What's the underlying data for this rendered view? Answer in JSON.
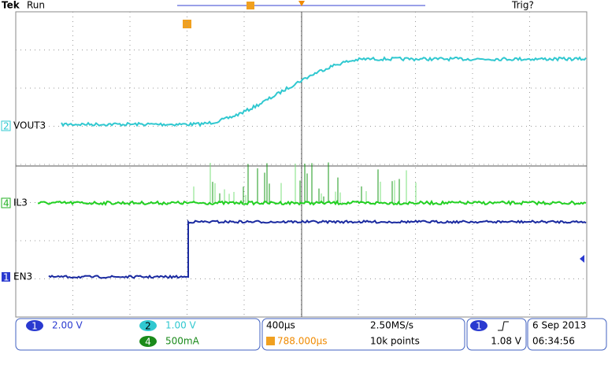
{
  "header": {
    "brand": "Tek",
    "status": "Run",
    "trigger_status": "Trig?"
  },
  "channels": [
    {
      "marker": "2",
      "label": "VOUT3"
    },
    {
      "marker": "4",
      "label": "IL3"
    },
    {
      "marker": "1",
      "label": "EN3"
    }
  ],
  "status_bar": {
    "ch1": {
      "marker": "1",
      "scale": "2.00 V"
    },
    "ch2": {
      "marker": "2",
      "scale": "1.00 V"
    },
    "ch4": {
      "marker": "4",
      "scale": "500mA"
    },
    "timebase": "400µs",
    "sample_rate": "2.50MS/s",
    "trigger_position": "788.000µs",
    "record_length": "10k points",
    "trigger_channel": "1",
    "trigger_level": "1.08 V",
    "date": "6 Sep 2013",
    "time": "06:34:56"
  }
}
